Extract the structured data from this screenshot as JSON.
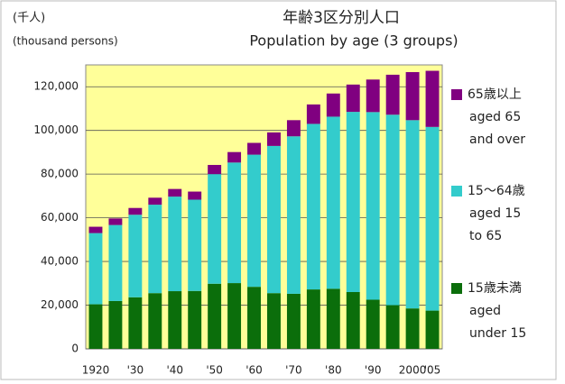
{
  "chart_data": {
    "type": "stacked_bar",
    "title": "年齢3区分別人口",
    "subtitle": "Population by age (3 groups)",
    "unit_label": "(千人)",
    "unit_label_en": "(thousand persons)",
    "categories": [
      "1920",
      null,
      "'30",
      null,
      "'40",
      null,
      "'50",
      null,
      "'60",
      null,
      "'70",
      null,
      "'80",
      null,
      "'90",
      null,
      "2000",
      "'05"
    ],
    "series": [
      {
        "name": "15歳未満",
        "name_en": [
          "aged",
          "under 15"
        ],
        "color": "#0b6e0b",
        "values": [
          20400,
          21900,
          23600,
          25500,
          26400,
          26500,
          29800,
          30100,
          28400,
          25500,
          25200,
          27200,
          27500,
          26000,
          22500,
          20000,
          18500,
          17500
        ]
      },
      {
        "name": "15～64歳",
        "name_en": [
          "aged 15",
          "to 65"
        ],
        "color": "#33cccc",
        "values": [
          32600,
          34800,
          37800,
          40500,
          43300,
          41800,
          50200,
          55200,
          60500,
          67400,
          72100,
          75800,
          78800,
          82500,
          85900,
          87200,
          86200,
          84100
        ]
      },
      {
        "name": "65歳以上",
        "name_en": [
          "aged 65",
          "and over"
        ],
        "color": "#800080",
        "values": [
          2900,
          3000,
          3100,
          3200,
          3500,
          3700,
          4200,
          4800,
          5400,
          6200,
          7400,
          8900,
          10600,
          12500,
          14900,
          18300,
          22000,
          25700
        ]
      }
    ],
    "ylim": [
      0,
      130000
    ],
    "yticks": [
      0,
      {
        "value": 20000,
        "label": "20,000"
      },
      {
        "value": 40000,
        "label": "40,000"
      },
      {
        "value": 60000,
        "label": "60,000"
      },
      {
        "value": 80000,
        "label": "80,000"
      },
      {
        "value": 100000,
        "label": "100,000"
      },
      {
        "value": 120000,
        "label": "120,000"
      }
    ],
    "grid": true,
    "plot_background": "#ffff99"
  }
}
